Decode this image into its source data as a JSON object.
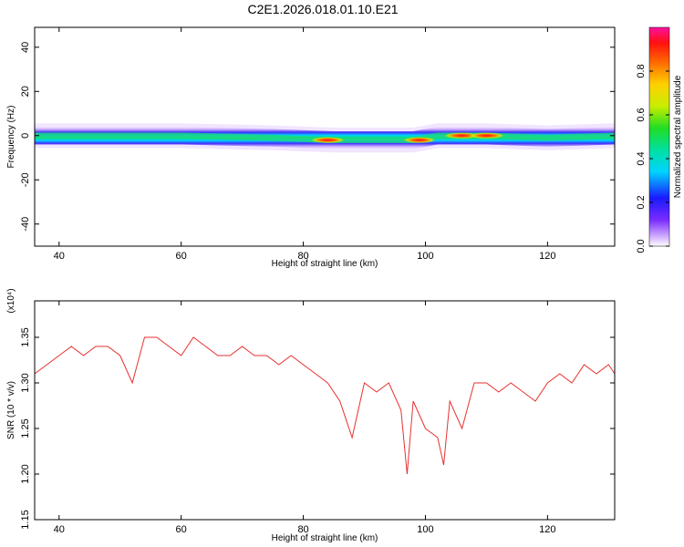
{
  "title": "C2E1.2026.018.01.10.E21",
  "chart_data": [
    {
      "type": "heatmap",
      "xlabel": "Height of straight line (km)",
      "ylabel": "Frequency (Hz)",
      "xlim": [
        36,
        131
      ],
      "ylim": [
        -50,
        49
      ],
      "xticks": [
        40,
        60,
        80,
        100,
        120
      ],
      "yticks": [
        -40,
        -20,
        0,
        20,
        40
      ],
      "colorbar": {
        "label": "Normalized spectral amplitude",
        "range": [
          0,
          1
        ],
        "ticks": [
          0.0,
          0.2,
          0.4,
          0.6,
          0.8
        ],
        "tick_labels": [
          "0.0",
          "0.2",
          "0.4",
          "0.6",
          "0.8"
        ]
      },
      "band": {
        "center_hz": [
          {
            "x": 36,
            "y": 0
          },
          {
            "x": 60,
            "y": 0
          },
          {
            "x": 75,
            "y": -1
          },
          {
            "x": 85,
            "y": -2
          },
          {
            "x": 92,
            "y": -2
          },
          {
            "x": 98,
            "y": -2
          },
          {
            "x": 102,
            "y": 0
          },
          {
            "x": 110,
            "y": 0
          },
          {
            "x": 120,
            "y": -1
          },
          {
            "x": 131,
            "y": 0
          }
        ],
        "half_width_hz": 4,
        "peaks": [
          {
            "x": 84,
            "y": -2,
            "amplitude": 0.9
          },
          {
            "x": 99,
            "y": -2,
            "amplitude": 0.85
          },
          {
            "x": 106,
            "y": 0,
            "amplitude": 0.95
          },
          {
            "x": 110,
            "y": 0,
            "amplitude": 0.95
          }
        ]
      },
      "grid": false
    },
    {
      "type": "line",
      "xlabel": "Height of straight line (km)",
      "ylabel": "SNR (10 * v/v)",
      "y_multiplier": "(x10⁴)",
      "xlim": [
        36,
        131
      ],
      "ylim": [
        1.15,
        1.39
      ],
      "xticks": [
        40,
        60,
        80,
        100,
        120
      ],
      "yticks": [
        1.15,
        1.2,
        1.25,
        1.3,
        1.35
      ],
      "ytick_labels": [
        "1.15",
        "1.20",
        "1.25",
        "1.30",
        "1.35"
      ],
      "series": [
        {
          "color": "#e83030",
          "x": [
            36,
            38,
            40,
            42,
            44,
            46,
            48,
            50,
            52,
            54,
            56,
            58,
            60,
            62,
            64,
            66,
            68,
            70,
            72,
            74,
            76,
            78,
            80,
            82,
            84,
            86,
            88,
            90,
            92,
            94,
            96,
            97,
            98,
            100,
            102,
            103,
            104,
            106,
            108,
            110,
            112,
            114,
            116,
            118,
            120,
            122,
            124,
            126,
            128,
            130,
            131
          ],
          "y": [
            1.31,
            1.32,
            1.33,
            1.34,
            1.33,
            1.34,
            1.34,
            1.33,
            1.3,
            1.35,
            1.35,
            1.34,
            1.33,
            1.35,
            1.34,
            1.33,
            1.33,
            1.34,
            1.33,
            1.33,
            1.32,
            1.33,
            1.32,
            1.31,
            1.3,
            1.28,
            1.24,
            1.3,
            1.29,
            1.3,
            1.27,
            1.2,
            1.28,
            1.25,
            1.24,
            1.21,
            1.28,
            1.25,
            1.3,
            1.3,
            1.29,
            1.3,
            1.29,
            1.28,
            1.3,
            1.31,
            1.3,
            1.32,
            1.31,
            1.32,
            1.31
          ]
        }
      ],
      "grid": false
    }
  ]
}
